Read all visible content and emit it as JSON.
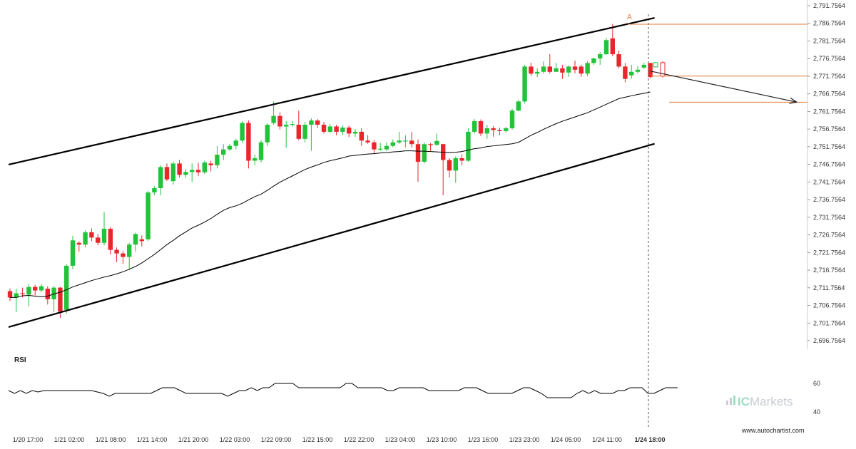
{
  "chart_data": {
    "type": "candlestick",
    "instrument": "",
    "y_axis": {
      "ticks": [
        "2,791.7564",
        "2,786.7564",
        "2,781.7564",
        "2,776.7564",
        "2,771.7564",
        "2,766.7564",
        "2,761.7564",
        "2,756.7564",
        "2,751.7564",
        "2,746.7564",
        "2,741.7564",
        "2,736.7564",
        "2,731.7564",
        "2,726.7564",
        "2,721.7564",
        "2,716.7564",
        "2,711.7564",
        "2,706.7564",
        "2,701.7564",
        "2,696.7564"
      ],
      "range": [
        2694.2,
        2791.76
      ]
    },
    "x_axis": {
      "labels": [
        "1/20 17:00",
        "1/21 02:00",
        "1/21 08:00",
        "1/21 14:00",
        "1/21 20:00",
        "1/22 03:00",
        "1/22 09:00",
        "1/22 15:00",
        "1/22 22:00",
        "1/23 04:00",
        "1/23 10:00",
        "1/23 16:00",
        "1/23 23:00",
        "1/24 05:00",
        "1/24 11:00",
        "1/24 18:00"
      ],
      "highlight": "1/24 18:00"
    },
    "candles": [
      [
        2710.8,
        2709.0,
        2711.5,
        2708.0
      ],
      [
        2709.0,
        2710.2,
        2711.5,
        2704.8
      ],
      [
        2710.2,
        2710.0,
        2711.8,
        2709.0
      ],
      [
        2709.8,
        2712.0,
        2712.8,
        2706.5
      ],
      [
        2712.0,
        2711.0,
        2712.6,
        2709.6
      ],
      [
        2711.0,
        2712.2,
        2712.8,
        2710.5
      ],
      [
        2711.5,
        2708.5,
        2712.2,
        2707.0
      ],
      [
        2708.5,
        2711.8,
        2712.2,
        2704.8
      ],
      [
        2711.8,
        2705.0,
        2712.0,
        2703.2
      ],
      [
        2705.5,
        2718.0,
        2718.5,
        2704.5
      ],
      [
        2718.0,
        2725.2,
        2726.5,
        2717.0
      ],
      [
        2724.5,
        2724.0,
        2725.0,
        2722.0
      ],
      [
        2724.0,
        2727.5,
        2728.0,
        2723.2
      ],
      [
        2727.5,
        2726.0,
        2728.6,
        2725.0
      ],
      [
        2726.0,
        2724.5,
        2727.0,
        2723.8
      ],
      [
        2724.5,
        2728.5,
        2733.2,
        2723.8
      ],
      [
        2728.5,
        2722.5,
        2729.0,
        2721.2
      ],
      [
        2722.5,
        2721.5,
        2723.2,
        2719.0
      ],
      [
        2721.5,
        2720.5,
        2722.2,
        2718.5
      ],
      [
        2720.5,
        2724.0,
        2724.5,
        2716.8
      ],
      [
        2724.0,
        2727.0,
        2727.4,
        2722.0
      ],
      [
        2725.5,
        2725.0,
        2726.6,
        2723.5
      ],
      [
        2725.5,
        2738.8,
        2739.2,
        2725.0
      ],
      [
        2738.8,
        2740.0,
        2740.6,
        2738.0
      ],
      [
        2740.0,
        2746.0,
        2746.5,
        2738.0
      ],
      [
        2746.0,
        2742.5,
        2747.0,
        2742.0
      ],
      [
        2742.0,
        2747.0,
        2747.6,
        2741.0
      ],
      [
        2747.0,
        2743.8,
        2748.0,
        2743.0
      ],
      [
        2743.8,
        2744.6,
        2745.5,
        2743.0
      ],
      [
        2744.6,
        2745.2,
        2747.0,
        2741.8
      ],
      [
        2745.2,
        2744.5,
        2747.2,
        2743.5
      ],
      [
        2744.5,
        2747.3,
        2747.8,
        2744.0
      ],
      [
        2747.0,
        2746.5,
        2747.8,
        2744.8
      ],
      [
        2746.5,
        2749.5,
        2752.0,
        2745.6
      ],
      [
        2749.5,
        2751.0,
        2752.5,
        2748.0
      ],
      [
        2751.0,
        2752.0,
        2752.6,
        2750.6
      ],
      [
        2752.0,
        2753.5,
        2754.0,
        2751.0
      ],
      [
        2753.5,
        2758.5,
        2759.0,
        2752.8
      ],
      [
        2758.5,
        2747.8,
        2759.2,
        2745.6
      ],
      [
        2747.8,
        2748.5,
        2749.5,
        2746.5
      ],
      [
        2748.0,
        2753.0,
        2753.6,
        2747.3
      ],
      [
        2753.0,
        2758.0,
        2758.5,
        2752.0
      ],
      [
        2758.5,
        2760.5,
        2764.6,
        2758.0
      ],
      [
        2760.5,
        2757.5,
        2761.5,
        2756.6
      ],
      [
        2757.5,
        2758.0,
        2759.0,
        2751.5
      ],
      [
        2758.0,
        2758.2,
        2759.0,
        2757.5
      ],
      [
        2758.0,
        2754.0,
        2762.0,
        2753.6
      ],
      [
        2754.0,
        2758.0,
        2758.8,
        2753.0
      ],
      [
        2758.0,
        2759.2,
        2759.8,
        2750.6
      ],
      [
        2759.2,
        2758.0,
        2759.6,
        2757.0
      ],
      [
        2758.0,
        2756.0,
        2758.8,
        2755.5
      ],
      [
        2756.0,
        2757.5,
        2758.2,
        2755.6
      ],
      [
        2757.5,
        2756.0,
        2758.0,
        2755.0
      ],
      [
        2756.0,
        2757.2,
        2757.8,
        2755.0
      ],
      [
        2757.2,
        2755.5,
        2757.8,
        2754.5
      ],
      [
        2755.5,
        2756.0,
        2756.8,
        2754.6
      ],
      [
        2756.0,
        2753.5,
        2757.0,
        2752.0
      ],
      [
        2753.5,
        2753.0,
        2755.0,
        2752.6
      ],
      [
        2753.0,
        2751.0,
        2753.6,
        2749.8
      ],
      [
        2751.0,
        2751.2,
        2752.8,
        2750.6
      ],
      [
        2751.0,
        2752.0,
        2753.0,
        2750.6
      ],
      [
        2752.0,
        2753.0,
        2753.8,
        2751.6
      ],
      [
        2753.0,
        2753.5,
        2756.0,
        2752.6
      ],
      [
        2753.5,
        2753.5,
        2755.0,
        2751.6
      ],
      [
        2753.5,
        2752.5,
        2756.0,
        2751.5
      ],
      [
        2752.5,
        2747.5,
        2753.8,
        2741.8
      ],
      [
        2747.5,
        2752.5,
        2753.0,
        2747.0
      ],
      [
        2752.5,
        2752.3,
        2752.8,
        2750.6
      ],
      [
        2752.3,
        2753.4,
        2755.5,
        2752.0
      ],
      [
        2752.5,
        2748.0,
        2752.6,
        2738.0
      ],
      [
        2748.0,
        2745.0,
        2748.5,
        2743.0
      ],
      [
        2745.0,
        2748.5,
        2749.0,
        2741.5
      ],
      [
        2748.5,
        2747.8,
        2749.6,
        2746.5
      ],
      [
        2747.8,
        2756.0,
        2757.0,
        2747.5
      ],
      [
        2756.0,
        2759.0,
        2759.6,
        2755.5
      ],
      [
        2759.0,
        2755.5,
        2759.5,
        2754.8
      ],
      [
        2755.5,
        2757.0,
        2758.0,
        2754.0
      ],
      [
        2757.0,
        2756.5,
        2757.6,
        2754.6
      ],
      [
        2756.5,
        2756.2,
        2757.2,
        2755.0
      ],
      [
        2756.2,
        2757.0,
        2757.4,
        2755.8
      ],
      [
        2757.0,
        2762.0,
        2762.5,
        2756.6
      ],
      [
        2762.0,
        2764.6,
        2765.0,
        2761.8
      ],
      [
        2764.6,
        2774.5,
        2775.0,
        2764.0
      ],
      [
        2774.5,
        2772.5,
        2775.6,
        2771.8
      ],
      [
        2772.5,
        2773.0,
        2774.0,
        2771.5
      ],
      [
        2773.0,
        2774.5,
        2776.0,
        2772.5
      ],
      [
        2774.5,
        2773.0,
        2778.0,
        2772.5
      ],
      [
        2773.0,
        2774.0,
        2775.6,
        2773.0
      ],
      [
        2774.0,
        2772.8,
        2775.0,
        2771.0
      ],
      [
        2772.8,
        2774.5,
        2774.8,
        2771.6
      ],
      [
        2774.5,
        2773.6,
        2776.2,
        2772.6
      ],
      [
        2774.5,
        2772.5,
        2775.0,
        2771.6
      ],
      [
        2772.5,
        2775.5,
        2776.0,
        2771.8
      ],
      [
        2775.5,
        2776.8,
        2777.0,
        2775.0
      ],
      [
        2776.8,
        2778.0,
        2778.6,
        2775.0
      ],
      [
        2778.0,
        2782.0,
        2782.5,
        2777.8
      ],
      [
        2782.5,
        2778.0,
        2786.6,
        2777.4
      ],
      [
        2778.0,
        2774.5,
        2779.0,
        2774.0
      ],
      [
        2774.5,
        2771.0,
        2775.5,
        2770.0
      ],
      [
        2772.0,
        2773.0,
        2775.0,
        2771.0
      ],
      [
        2773.0,
        2773.6,
        2774.6,
        2772.6
      ],
      [
        2774.2,
        2775.0,
        2775.6,
        2773.8
      ],
      [
        2775.5,
        2771.5,
        2775.6,
        2771.2
      ]
    ],
    "moving_average": [
      2709.0,
      2709.0,
      2709.5,
      2709.6,
      2709.4,
      2709.2,
      2709.4,
      2710.0,
      2710.5,
      2711.2,
      2712.0,
      2712.6,
      2713.2,
      2713.8,
      2714.3,
      2714.8,
      2715.2,
      2715.7,
      2716.3,
      2717.0,
      2717.8,
      2718.8,
      2720.0,
      2721.2,
      2722.6,
      2724.0,
      2725.2,
      2726.5,
      2727.6,
      2728.7,
      2729.5,
      2730.4,
      2731.4,
      2732.6,
      2733.7,
      2734.5,
      2735.0,
      2735.7,
      2736.7,
      2737.6,
      2738.3,
      2739.4,
      2740.6,
      2741.7,
      2742.6,
      2743.5,
      2744.4,
      2745.3,
      2746.0,
      2746.6,
      2747.3,
      2747.8,
      2748.2,
      2748.6,
      2749.1,
      2749.3,
      2749.5,
      2749.7,
      2749.8,
      2750.0,
      2750.1,
      2750.3,
      2750.4,
      2750.6,
      2750.6,
      2750.5,
      2750.5,
      2750.4,
      2750.3,
      2750.2,
      2750.1,
      2750.2,
      2750.4,
      2750.8,
      2751.2,
      2751.4,
      2751.8,
      2752.0,
      2752.2,
      2752.4,
      2752.6,
      2753.0,
      2754.0,
      2755.0,
      2755.8,
      2756.7,
      2757.5,
      2758.3,
      2759.0,
      2759.6,
      2760.2,
      2760.8,
      2761.4,
      2762.2,
      2763.0,
      2763.8,
      2764.6,
      2765.4,
      2765.8,
      2766.2,
      2766.6,
      2766.9,
      2767.3
    ],
    "channel": {
      "upper": {
        "from": [
          0,
          2746.7
        ],
        "to": [
          102,
          2788.3
        ]
      },
      "lower": {
        "from": [
          0,
          2700.6
        ],
        "to": [
          102,
          2752.6
        ]
      }
    },
    "levels": [
      {
        "value": 2786.5,
        "from_candle": 98,
        "color": "#e07b39"
      },
      {
        "value": 2771.8,
        "from_candle": 102,
        "color": "#e07b39"
      },
      {
        "value": 2764.4,
        "from_candle": 106,
        "color": "#e07b39"
      }
    ],
    "projection": {
      "from": [
        103,
        2773.2
      ],
      "to": [
        124,
        2764.4
      ]
    },
    "pattern_point_label": "A",
    "forecast_candles": [
      [
        2774.4,
        2775.6,
        2775.8,
        2774.2
      ],
      [
        2775.6,
        2771.8,
        2776.0,
        2771.4
      ]
    ],
    "rsi": {
      "title": "RSI",
      "ticks": [
        "60",
        "40"
      ],
      "range": [
        35,
        65
      ],
      "values": [
        55,
        53,
        55,
        53,
        55,
        54,
        55,
        55,
        55,
        55,
        55,
        55,
        55,
        55,
        55,
        54,
        53,
        51,
        53,
        53,
        53,
        53,
        53,
        53,
        53,
        55,
        57,
        57,
        57,
        55,
        53,
        53,
        53,
        53,
        53,
        53,
        53,
        51,
        53,
        55,
        55,
        57,
        55,
        57,
        57,
        60,
        60,
        60,
        60,
        57,
        57,
        57,
        57,
        57,
        57,
        57,
        57,
        60,
        60,
        57,
        57,
        57,
        57,
        57,
        55,
        55,
        57,
        57,
        57,
        57,
        57,
        55,
        55,
        55,
        55,
        55,
        55,
        57,
        57,
        57,
        55,
        53,
        53,
        53,
        53,
        53,
        55,
        57,
        57,
        55,
        53,
        50,
        50,
        50,
        50,
        50,
        53,
        55,
        53,
        55,
        53,
        53,
        53,
        55,
        55,
        57,
        57,
        57,
        53,
        53,
        55,
        57,
        57,
        57
      ]
    },
    "colors": {
      "bull": "#22c33a",
      "bear": "#e8262b",
      "channel": "#000000",
      "level": "#e07b39",
      "ma": "#000000",
      "rsi": "#000000"
    }
  },
  "watermark": {
    "brand_prefix": "IC",
    "brand_suffix": "Markets"
  },
  "footer": {
    "credit": "www.autochartist.com"
  }
}
